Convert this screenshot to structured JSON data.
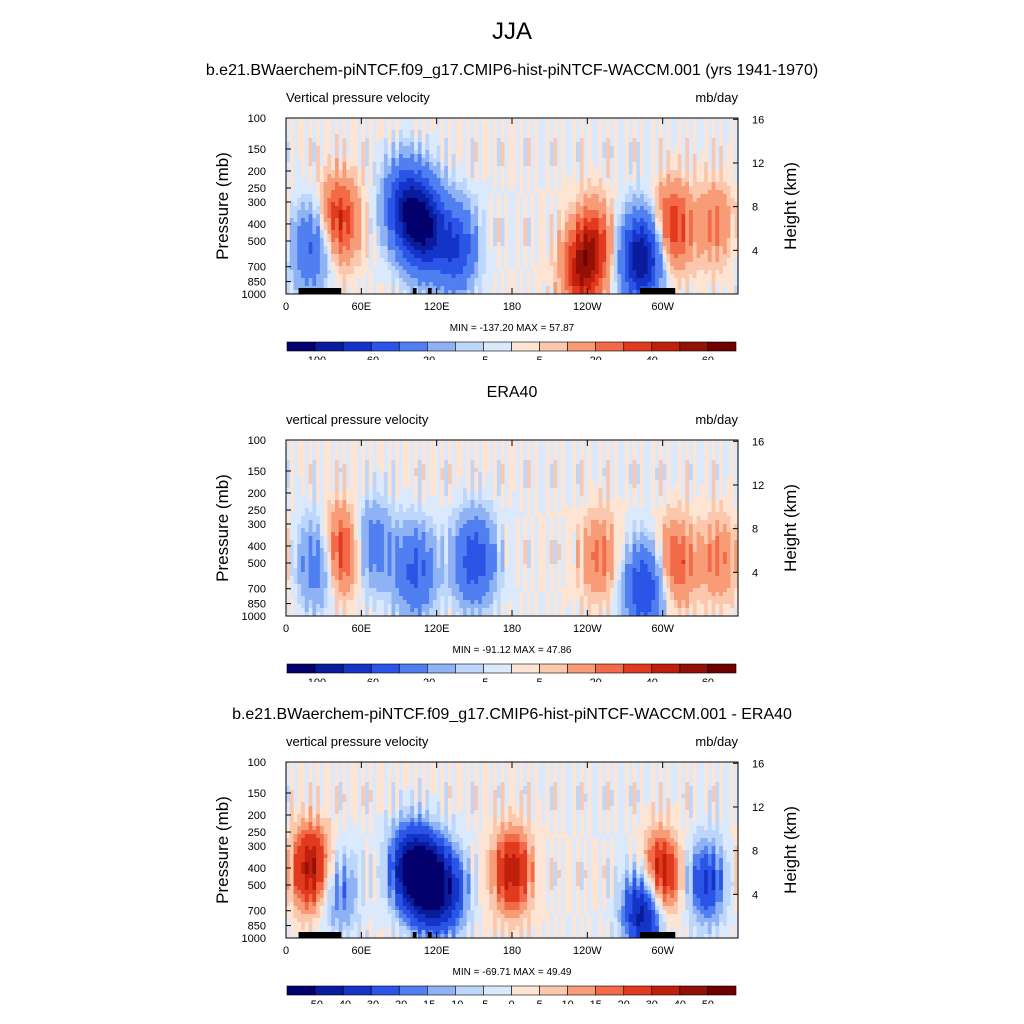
{
  "figure": {
    "title": "JJA"
  },
  "colors": {
    "diverging": [
      "#03006d",
      "#0a1c9e",
      "#1434c8",
      "#2a55e6",
      "#4f7ff0",
      "#8fb2f5",
      "#bdd6fb",
      "#dbe9fd",
      "#fde4d3",
      "#fbc7ad",
      "#f89c78",
      "#f26a48",
      "#e23a1e",
      "#c01f0c",
      "#921004",
      "#6e0000"
    ]
  },
  "chart_data": [
    {
      "type": "heatmap",
      "suptitle": "b.e21.BWaerchem-piNTCF.f09_g17.CMIP6-hist-piNTCF-WACCM.001 (yrs 1941-1970)",
      "left_string": "Vertical pressure velocity",
      "right_string": "mb/day",
      "xlabel": "",
      "ylabel": "Pressure (mb)",
      "y2label": "Height (km)",
      "x_ticks": [
        "0",
        "60E",
        "120E",
        "180",
        "120W",
        "60W"
      ],
      "y_ticks": [
        "100",
        "150",
        "200",
        "250",
        "300",
        "400",
        "500",
        "700",
        "850",
        "1000"
      ],
      "y2_ticks": [
        "4",
        "8",
        "12",
        "16"
      ],
      "stats": "MIN = -137.20  MAX =  57.87",
      "min": -137.2,
      "max": 57.87,
      "colorbar_labels": [
        "-100",
        "-60",
        "-20",
        "-5",
        "5",
        "20",
        "40",
        "60"
      ],
      "colorbar_levels": [
        -120,
        -100,
        -80,
        -60,
        -40,
        -20,
        -10,
        -5,
        0,
        5,
        10,
        20,
        30,
        40,
        50,
        60
      ],
      "features": [
        {
          "lon": 20,
          "p": 550,
          "value": -40
        },
        {
          "lon": 42,
          "p": 380,
          "value": 40
        },
        {
          "lon": 95,
          "p": 320,
          "value": -75
        },
        {
          "lon": 110,
          "p": 420,
          "value": -95
        },
        {
          "lon": 135,
          "p": 550,
          "value": -60
        },
        {
          "lon": 245,
          "p": 520,
          "value": 35
        },
        {
          "lon": 235,
          "p": 760,
          "value": 40
        },
        {
          "lon": 283,
          "p": 620,
          "value": -100
        },
        {
          "lon": 307,
          "p": 420,
          "value": 40
        },
        {
          "lon": 342,
          "p": 400,
          "value": 20
        }
      ],
      "topography": [
        {
          "lon1": 10,
          "lon2": 44,
          "p": 1000
        },
        {
          "lon1": 27,
          "lon2": 35,
          "p": 930
        },
        {
          "lon1": 101,
          "lon2": 104,
          "p": 1000
        },
        {
          "lon1": 113,
          "lon2": 116,
          "p": 1000
        },
        {
          "lon1": 282,
          "lon2": 310,
          "p": 1000
        }
      ]
    },
    {
      "type": "heatmap",
      "suptitle": "ERA40",
      "left_string": "vertical pressure velocity",
      "right_string": "mb/day",
      "xlabel": "",
      "ylabel": "Pressure (mb)",
      "y2label": "Height (km)",
      "x_ticks": [
        "0",
        "60E",
        "120E",
        "180",
        "120W",
        "60W"
      ],
      "y_ticks": [
        "100",
        "150",
        "200",
        "250",
        "300",
        "400",
        "500",
        "700",
        "850",
        "1000"
      ],
      "y2_ticks": [
        "4",
        "8",
        "12",
        "16"
      ],
      "stats": "MIN = -91.12  MAX =  47.86",
      "min": -91.12,
      "max": 47.86,
      "colorbar_labels": [
        "-100",
        "-60",
        "-20",
        "-5",
        "5",
        "20",
        "40",
        "60"
      ],
      "colorbar_levels": [
        -120,
        -100,
        -80,
        -60,
        -40,
        -20,
        -10,
        -5,
        0,
        5,
        10,
        20,
        30,
        40,
        50,
        60
      ],
      "features": [
        {
          "lon": 25,
          "p": 500,
          "value": -35
        },
        {
          "lon": 43,
          "p": 430,
          "value": 40
        },
        {
          "lon": 70,
          "p": 400,
          "value": -30
        },
        {
          "lon": 103,
          "p": 560,
          "value": -45
        },
        {
          "lon": 150,
          "p": 480,
          "value": -55
        },
        {
          "lon": 250,
          "p": 460,
          "value": 22
        },
        {
          "lon": 285,
          "p": 700,
          "value": -60
        },
        {
          "lon": 310,
          "p": 500,
          "value": 30
        },
        {
          "lon": 345,
          "p": 480,
          "value": 20
        }
      ],
      "topography": []
    },
    {
      "type": "heatmap",
      "suptitle": "b.e21.BWaerchem-piNTCF.f09_g17.CMIP6-hist-piNTCF-WACCM.001 - ERA40",
      "left_string": "vertical pressure velocity",
      "right_string": "mb/day",
      "xlabel": "",
      "ylabel": "Pressure (mb)",
      "y2label": "Height (km)",
      "x_ticks": [
        "0",
        "60E",
        "120E",
        "180",
        "120W",
        "60W"
      ],
      "y_ticks": [
        "100",
        "150",
        "200",
        "250",
        "300",
        "400",
        "500",
        "700",
        "850",
        "1000"
      ],
      "y2_ticks": [
        "4",
        "8",
        "12",
        "16"
      ],
      "stats": "MIN = -69.71  MAX =  49.49",
      "min": -69.71,
      "max": 49.49,
      "colorbar_labels": [
        "-50",
        "-40",
        "-30",
        "-20",
        "-15",
        "-10",
        "-5",
        "0",
        "5",
        "10",
        "15",
        "20",
        "30",
        "40",
        "50"
      ],
      "colorbar_levels": [
        -60,
        -50,
        -40,
        -30,
        -20,
        -15,
        -10,
        -5,
        0,
        5,
        10,
        15,
        20,
        30,
        40,
        50
      ],
      "features": [
        {
          "lon": 20,
          "p": 400,
          "value": 40
        },
        {
          "lon": 42,
          "p": 550,
          "value": -20
        },
        {
          "lon": 98,
          "p": 400,
          "value": -45
        },
        {
          "lon": 113,
          "p": 480,
          "value": -60
        },
        {
          "lon": 130,
          "p": 550,
          "value": -30
        },
        {
          "lon": 180,
          "p": 420,
          "value": 35
        },
        {
          "lon": 285,
          "p": 700,
          "value": -50
        },
        {
          "lon": 298,
          "p": 450,
          "value": 40
        },
        {
          "lon": 335,
          "p": 480,
          "value": -30
        }
      ],
      "topography": [
        {
          "lon1": 10,
          "lon2": 44,
          "p": 1000
        },
        {
          "lon1": 27,
          "lon2": 35,
          "p": 930
        },
        {
          "lon1": 101,
          "lon2": 104,
          "p": 1000
        },
        {
          "lon1": 113,
          "lon2": 116,
          "p": 1000
        },
        {
          "lon1": 282,
          "lon2": 310,
          "p": 1000
        }
      ]
    }
  ]
}
